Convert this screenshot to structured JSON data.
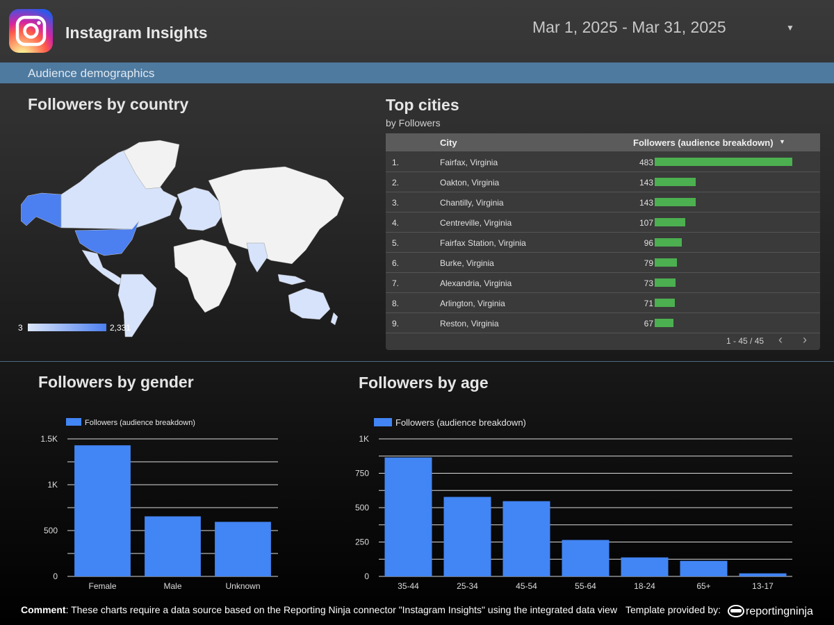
{
  "header": {
    "title": "Instagram Insights",
    "date_range": "Mar 1, 2025 - Mar 31, 2025",
    "section": "Audience demographics"
  },
  "map": {
    "title": "Followers by country",
    "legend_min": "3",
    "legend_max": "2,331"
  },
  "cities": {
    "title": "Top cities",
    "subtitle": "by Followers",
    "col_city": "City",
    "col_followers": "Followers (audience breakdown)",
    "rows": [
      {
        "idx": "1.",
        "city": "Fairfax, Virginia",
        "value": 483
      },
      {
        "idx": "2.",
        "city": "Oakton, Virginia",
        "value": 143
      },
      {
        "idx": "3.",
        "city": "Chantilly, Virginia",
        "value": 143
      },
      {
        "idx": "4.",
        "city": "Centreville, Virginia",
        "value": 107
      },
      {
        "idx": "5.",
        "city": "Fairfax Station, Virginia",
        "value": 96
      },
      {
        "idx": "6.",
        "city": "Burke, Virginia",
        "value": 79
      },
      {
        "idx": "7.",
        "city": "Alexandria, Virginia",
        "value": 73
      },
      {
        "idx": "8.",
        "city": "Arlington, Virginia",
        "value": 71
      },
      {
        "idx": "9.",
        "city": "Reston, Virginia",
        "value": 67
      }
    ],
    "bar_color": "#4caf50",
    "pagination": "1 - 45 / 45"
  },
  "gender": {
    "title": "Followers by gender"
  },
  "age": {
    "title": "Followers by age"
  },
  "chart_data": [
    {
      "type": "bar",
      "title": "Followers by gender",
      "categories": [
        "Female",
        "Male",
        "Unknown"
      ],
      "series": [
        {
          "name": "Followers (audience breakdown)",
          "values": [
            1430,
            655,
            595
          ]
        }
      ],
      "yticks": [
        0,
        500,
        1000,
        1500
      ],
      "ytick_labels": [
        "0",
        "500",
        "1K",
        "1.5K"
      ],
      "ylim": [
        0,
        1500
      ],
      "color": "#4285f4",
      "legend": "top-left"
    },
    {
      "type": "bar",
      "title": "Followers by age",
      "categories": [
        "35-44",
        "25-34",
        "45-54",
        "55-64",
        "18-24",
        "65+",
        "13-17"
      ],
      "series": [
        {
          "name": "Followers (audience breakdown)",
          "values": [
            865,
            578,
            547,
            265,
            138,
            113,
            22
          ]
        }
      ],
      "yticks": [
        0,
        250,
        500,
        750,
        1000
      ],
      "ytick_labels": [
        "0",
        "250",
        "500",
        "750",
        "1K"
      ],
      "ylim": [
        0,
        1000
      ],
      "color": "#4285f4",
      "legend": "top-left"
    }
  ],
  "footer": {
    "comment_label": "Comment",
    "comment_text": ": These charts require a data source based on the Reporting Ninja connector \"Instagram Insights\" using the integrated data view",
    "template_text": "Template provided by:",
    "brand": "reportingninja"
  }
}
